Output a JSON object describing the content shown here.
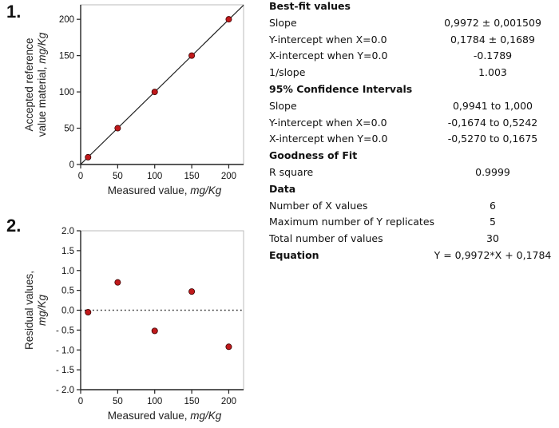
{
  "panels": {
    "p1": "1.",
    "p2": "2."
  },
  "chart_data": [
    {
      "type": "scatter",
      "panel": "1.",
      "xlabel": "Measured value,",
      "xlabel_unit": "mg/Kg",
      "ylabel_line1": "Accepted reference",
      "ylabel_line2": "value material,",
      "ylabel_unit": "mg/Kg",
      "xlim": [
        0,
        220
      ],
      "ylim": [
        0,
        220
      ],
      "xticks": [
        0,
        50,
        100,
        150,
        200
      ],
      "yticks": [
        0,
        50,
        100,
        150,
        200
      ],
      "x": [
        10,
        50,
        100,
        150,
        200
      ],
      "y": [
        10,
        50,
        100,
        150,
        200
      ],
      "fit_line": {
        "slope": 0.9972,
        "intercept": 0.1784
      }
    },
    {
      "type": "scatter",
      "panel": "2.",
      "xlabel": "Measured value,",
      "xlabel_unit": "mg/Kg",
      "ylabel_line1": "Residual values,",
      "ylabel_unit": "mg/Kg",
      "xlim": [
        0,
        220
      ],
      "ylim": [
        -2.0,
        2.0
      ],
      "xticks": [
        0,
        50,
        100,
        150,
        200
      ],
      "yticks": [
        -2.0,
        -1.5,
        -1.0,
        -0.5,
        0.0,
        0.5,
        1.0,
        1.5,
        2.0
      ],
      "ytick_labels": [
        "- 2.0",
        "- 1.5",
        "- 1.0",
        "- 0.5",
        "0.0",
        "0.5",
        "1.0",
        "1.5",
        "2.0"
      ],
      "x": [
        10,
        50,
        100,
        150,
        200
      ],
      "y": [
        -0.05,
        0.7,
        -0.52,
        0.47,
        -0.92
      ],
      "zero_line": 0
    }
  ],
  "stats": [
    {
      "label": "Best-fit values",
      "value": "",
      "header": true
    },
    {
      "label": "Slope",
      "value": "0,9972 ± 0,001509"
    },
    {
      "label": "Y-intercept when X=0.0",
      "value": "0,1784 ± 0,1689"
    },
    {
      "label": "X-intercept when Y=0.0",
      "value": "-0.1789"
    },
    {
      "label": "1/slope",
      "value": "1.003"
    },
    {
      "label": "95% Confidence Intervals",
      "value": "",
      "header": true
    },
    {
      "label": "Slope",
      "value": "0,9941 to 1,000"
    },
    {
      "label": "Y-intercept when X=0.0",
      "value": "-0,1674 to 0,5242"
    },
    {
      "label": "X-intercept when Y=0.0",
      "value": "-0,5270 to 0,1675"
    },
    {
      "label": "Goodness of Fit",
      "value": "",
      "header": true
    },
    {
      "label": "R square",
      "value": "0.9999"
    },
    {
      "label": "Data",
      "value": "",
      "header": true
    },
    {
      "label": "Number of X values",
      "value": "6"
    },
    {
      "label": "Maximum number of Y replicates",
      "value": "5"
    },
    {
      "label": "Total number of values",
      "value": "30"
    },
    {
      "label": "Equation",
      "value": "Y = 0,9972*X + 0,1784",
      "header": true
    }
  ],
  "colors": {
    "point": "#c0191b",
    "axis": "#222222",
    "fit": "#222222"
  }
}
